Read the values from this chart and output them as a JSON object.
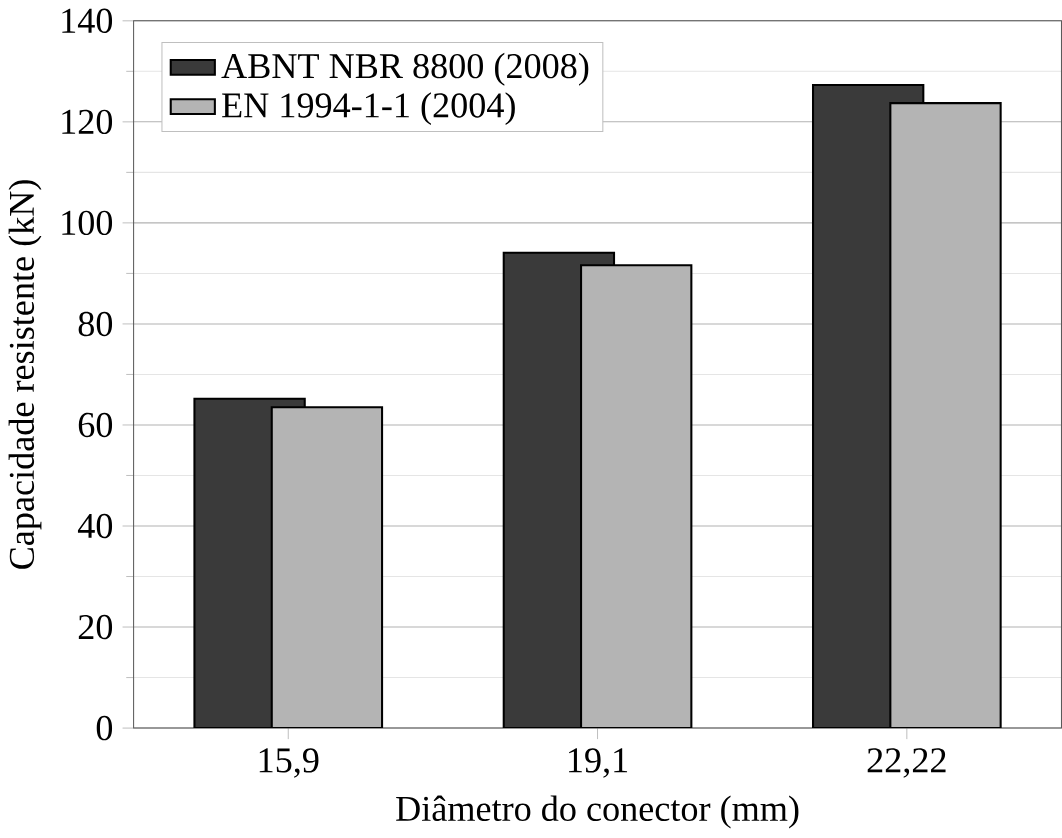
{
  "chart_data": {
    "type": "bar",
    "xlabel": "Diâmetro do conector (mm)",
    "ylabel": "Capacidade resistente (kN)",
    "categories": [
      "15,9",
      "19,1",
      "22,22"
    ],
    "series": [
      {
        "name": "ABNT NBR 8800 (2008)",
        "color": "#3a3a3a",
        "values": [
          65.2,
          94.1,
          127.3
        ]
      },
      {
        "name": "EN 1994-1-1 (2004)",
        "color": "#b4b4b4",
        "values": [
          63.5,
          91.6,
          123.7
        ]
      }
    ],
    "ylim": [
      0,
      140
    ],
    "yticks": [
      0,
      20,
      40,
      60,
      80,
      100,
      120,
      140
    ],
    "grid": "y",
    "legend": "top left"
  }
}
